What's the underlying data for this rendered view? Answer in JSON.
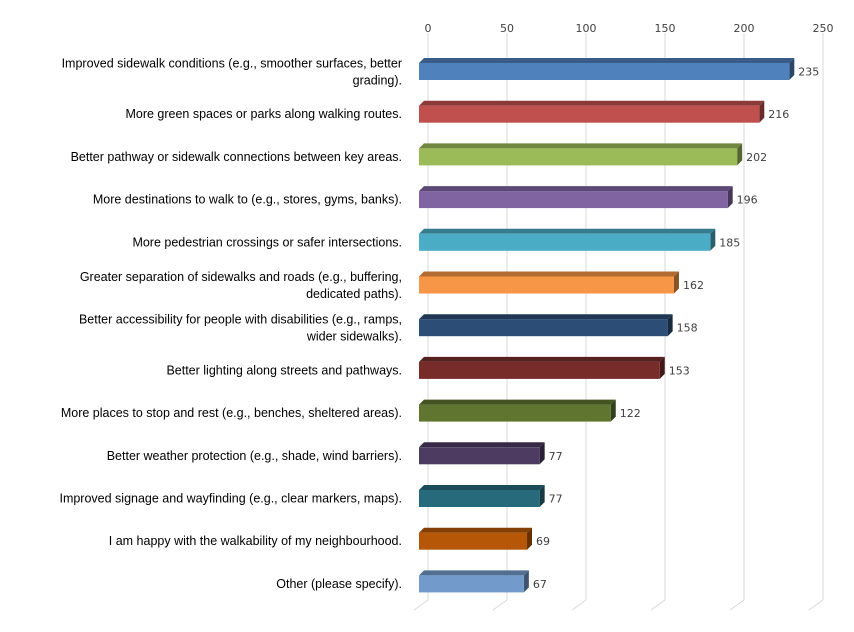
{
  "chart_data": {
    "type": "bar",
    "orientation": "horizontal",
    "title": "",
    "xlabel": "",
    "ylabel": "",
    "xlim": [
      0,
      250
    ],
    "ticks": [
      0,
      50,
      100,
      150,
      200,
      250
    ],
    "grid": true,
    "legend": "none",
    "categories": [
      [
        "Improved sidewalk conditions (e.g., smoother surfaces, better",
        "grading)."
      ],
      [
        "More green spaces or parks along walking routes."
      ],
      [
        "Better pathway or sidewalk connections between key areas."
      ],
      [
        "More destinations to walk to (e.g., stores, gyms, banks)."
      ],
      [
        "More pedestrian crossings or safer intersections."
      ],
      [
        "Greater separation of sidewalks and roads (e.g., buffering,",
        "dedicated paths)."
      ],
      [
        "Better accessibility for people with disabilities (e.g., ramps,",
        "wider sidewalks)."
      ],
      [
        "Better lighting along streets and pathways."
      ],
      [
        "More places to stop and rest (e.g., benches, sheltered areas)."
      ],
      [
        "Better weather protection (e.g., shade, wind barriers)."
      ],
      [
        "Improved signage and wayfinding (e.g., clear markers, maps)."
      ],
      [
        "I am happy with the walkability of my neighbourhood."
      ],
      [
        "Other (please specify)."
      ]
    ],
    "values": [
      235,
      216,
      202,
      196,
      185,
      162,
      158,
      153,
      122,
      77,
      77,
      69,
      67
    ],
    "colors": [
      "#4f81bd",
      "#c0504d",
      "#9bbb59",
      "#8064a2",
      "#4bacc6",
      "#f79646",
      "#2c4d75",
      "#772c2a",
      "#5f7530",
      "#4d3b62",
      "#276a7c",
      "#b65708",
      "#729aca"
    ]
  }
}
